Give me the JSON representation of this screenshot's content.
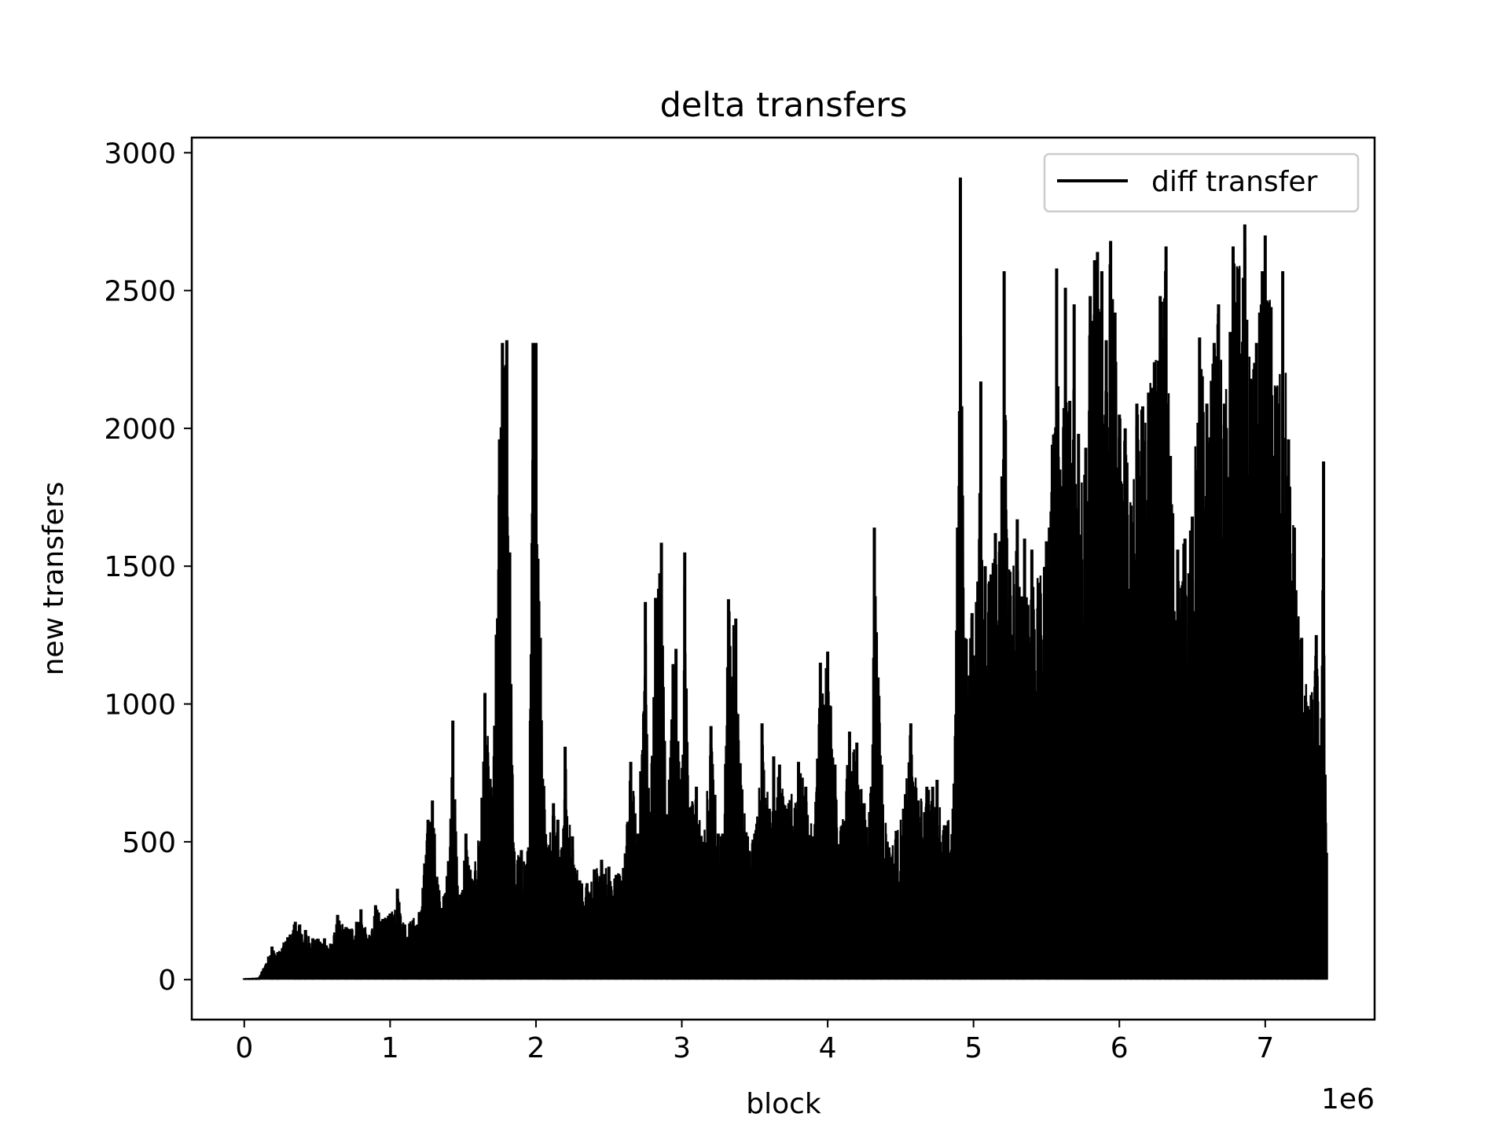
{
  "chart_data": {
    "type": "line",
    "title": "delta transfers",
    "xlabel": "block",
    "ylabel": "new transfers",
    "x_offset_label": "1e6",
    "xlim": [
      -0.36,
      7.75
    ],
    "ylim": [
      -145,
      3055
    ],
    "x_ticks": [
      0,
      1,
      2,
      3,
      4,
      5,
      6,
      7
    ],
    "x_tick_labels": [
      "0",
      "1",
      "2",
      "3",
      "4",
      "5",
      "6",
      "7"
    ],
    "y_ticks": [
      0,
      500,
      1000,
      1500,
      2000,
      2500,
      3000
    ],
    "y_tick_labels": [
      "0",
      "500",
      "1000",
      "1500",
      "2000",
      "2500",
      "3000"
    ],
    "grid": false,
    "legend_position": "top-right",
    "series": [
      {
        "name": "diff transfer",
        "color": "#000000",
        "peaks": [
          [
            0.0,
            5
          ],
          [
            0.1,
            8
          ],
          [
            0.19,
            120
          ],
          [
            0.23,
            100
          ],
          [
            0.35,
            210
          ],
          [
            0.38,
            200
          ],
          [
            0.42,
            180
          ],
          [
            0.47,
            150
          ],
          [
            0.55,
            150
          ],
          [
            0.6,
            130
          ],
          [
            0.64,
            235
          ],
          [
            0.7,
            190
          ],
          [
            0.77,
            210
          ],
          [
            0.8,
            255
          ],
          [
            0.85,
            150
          ],
          [
            0.9,
            270
          ],
          [
            0.95,
            220
          ],
          [
            1.0,
            240
          ],
          [
            1.05,
            330
          ],
          [
            1.1,
            200
          ],
          [
            1.2,
            245
          ],
          [
            1.26,
            580
          ],
          [
            1.29,
            650
          ],
          [
            1.35,
            260
          ],
          [
            1.4,
            430
          ],
          [
            1.43,
            940
          ],
          [
            1.47,
            280
          ],
          [
            1.52,
            530
          ],
          [
            1.57,
            360
          ],
          [
            1.63,
            660
          ],
          [
            1.65,
            1040
          ],
          [
            1.7,
            650
          ],
          [
            1.75,
            1960
          ],
          [
            1.77,
            2310
          ],
          [
            1.8,
            2320
          ],
          [
            1.82,
            1550
          ],
          [
            1.85,
            465
          ],
          [
            1.9,
            470
          ],
          [
            1.95,
            480
          ],
          [
            1.98,
            2310
          ],
          [
            2.0,
            2310
          ],
          [
            2.03,
            1240
          ],
          [
            2.08,
            480
          ],
          [
            2.12,
            640
          ],
          [
            2.15,
            580
          ],
          [
            2.18,
            480
          ],
          [
            2.2,
            845
          ],
          [
            2.25,
            520
          ],
          [
            2.3,
            360
          ],
          [
            2.35,
            350
          ],
          [
            2.4,
            400
          ],
          [
            2.45,
            435
          ],
          [
            2.5,
            410
          ],
          [
            2.55,
            380
          ],
          [
            2.6,
            405
          ],
          [
            2.65,
            790
          ],
          [
            2.7,
            530
          ],
          [
            2.75,
            1370
          ],
          [
            2.78,
            600
          ],
          [
            2.82,
            1385
          ],
          [
            2.86,
            1585
          ],
          [
            2.9,
            600
          ],
          [
            2.94,
            1145
          ],
          [
            2.96,
            1200
          ],
          [
            2.99,
            720
          ],
          [
            3.02,
            1550
          ],
          [
            3.05,
            625
          ],
          [
            3.1,
            700
          ],
          [
            3.15,
            500
          ],
          [
            3.2,
            920
          ],
          [
            3.25,
            530
          ],
          [
            3.28,
            530
          ],
          [
            3.32,
            1380
          ],
          [
            3.37,
            1310
          ],
          [
            3.4,
            785
          ],
          [
            3.45,
            520
          ],
          [
            3.5,
            530
          ],
          [
            3.55,
            930
          ],
          [
            3.6,
            620
          ],
          [
            3.63,
            810
          ],
          [
            3.67,
            780
          ],
          [
            3.72,
            620
          ],
          [
            3.8,
            790
          ],
          [
            3.85,
            700
          ],
          [
            3.9,
            520
          ],
          [
            3.95,
            1150
          ],
          [
            4.0,
            1190
          ],
          [
            4.05,
            780
          ],
          [
            4.1,
            560
          ],
          [
            4.15,
            900
          ],
          [
            4.2,
            860
          ],
          [
            4.25,
            640
          ],
          [
            4.3,
            700
          ],
          [
            4.32,
            1640
          ],
          [
            4.37,
            780
          ],
          [
            4.42,
            480
          ],
          [
            4.47,
            540
          ],
          [
            4.52,
            620
          ],
          [
            4.57,
            930
          ],
          [
            4.62,
            650
          ],
          [
            4.68,
            700
          ],
          [
            4.72,
            700
          ],
          [
            4.75,
            725
          ],
          [
            4.8,
            560
          ],
          [
            4.86,
            620
          ],
          [
            4.89,
            1640
          ],
          [
            4.91,
            2910
          ],
          [
            4.94,
            1240
          ],
          [
            4.99,
            1330
          ],
          [
            5.02,
            1370
          ],
          [
            5.05,
            2170
          ],
          [
            5.08,
            1500
          ],
          [
            5.12,
            1470
          ],
          [
            5.15,
            1620
          ],
          [
            5.18,
            1590
          ],
          [
            5.21,
            2570
          ],
          [
            5.25,
            1480
          ],
          [
            5.3,
            1670
          ],
          [
            5.33,
            1390
          ],
          [
            5.35,
            1600
          ],
          [
            5.4,
            1560
          ],
          [
            5.45,
            1440
          ],
          [
            5.5,
            1590
          ],
          [
            5.52,
            1640
          ],
          [
            5.57,
            2580
          ],
          [
            5.6,
            1790
          ],
          [
            5.63,
            2510
          ],
          [
            5.66,
            2100
          ],
          [
            5.69,
            2450
          ],
          [
            5.72,
            1980
          ],
          [
            5.77,
            1930
          ],
          [
            5.8,
            2480
          ],
          [
            5.83,
            2610
          ],
          [
            5.85,
            2640
          ],
          [
            5.88,
            2570
          ],
          [
            5.91,
            2320
          ],
          [
            5.94,
            2680
          ],
          [
            5.97,
            2420
          ],
          [
            6.0,
            2050
          ],
          [
            6.04,
            2000
          ],
          [
            6.08,
            1720
          ],
          [
            6.12,
            2090
          ],
          [
            6.16,
            2080
          ],
          [
            6.2,
            2130
          ],
          [
            6.24,
            2240
          ],
          [
            6.28,
            2480
          ],
          [
            6.32,
            2660
          ],
          [
            6.35,
            1900
          ],
          [
            6.4,
            1560
          ],
          [
            6.45,
            1600
          ],
          [
            6.5,
            1680
          ],
          [
            6.55,
            2330
          ],
          [
            6.6,
            2090
          ],
          [
            6.65,
            2310
          ],
          [
            6.68,
            2450
          ],
          [
            6.72,
            2090
          ],
          [
            6.76,
            2350
          ],
          [
            6.78,
            2660
          ],
          [
            6.82,
            2580
          ],
          [
            6.86,
            2740
          ],
          [
            6.9,
            2180
          ],
          [
            6.94,
            2310
          ],
          [
            6.98,
            2570
          ],
          [
            7.0,
            2700
          ],
          [
            7.04,
            2440
          ],
          [
            7.08,
            2150
          ],
          [
            7.12,
            2570
          ],
          [
            7.16,
            1960
          ],
          [
            7.2,
            1640
          ],
          [
            7.25,
            1240
          ],
          [
            7.3,
            980
          ],
          [
            7.35,
            1250
          ],
          [
            7.38,
            850
          ],
          [
            7.4,
            1880
          ],
          [
            7.42,
            460
          ]
        ]
      }
    ]
  }
}
